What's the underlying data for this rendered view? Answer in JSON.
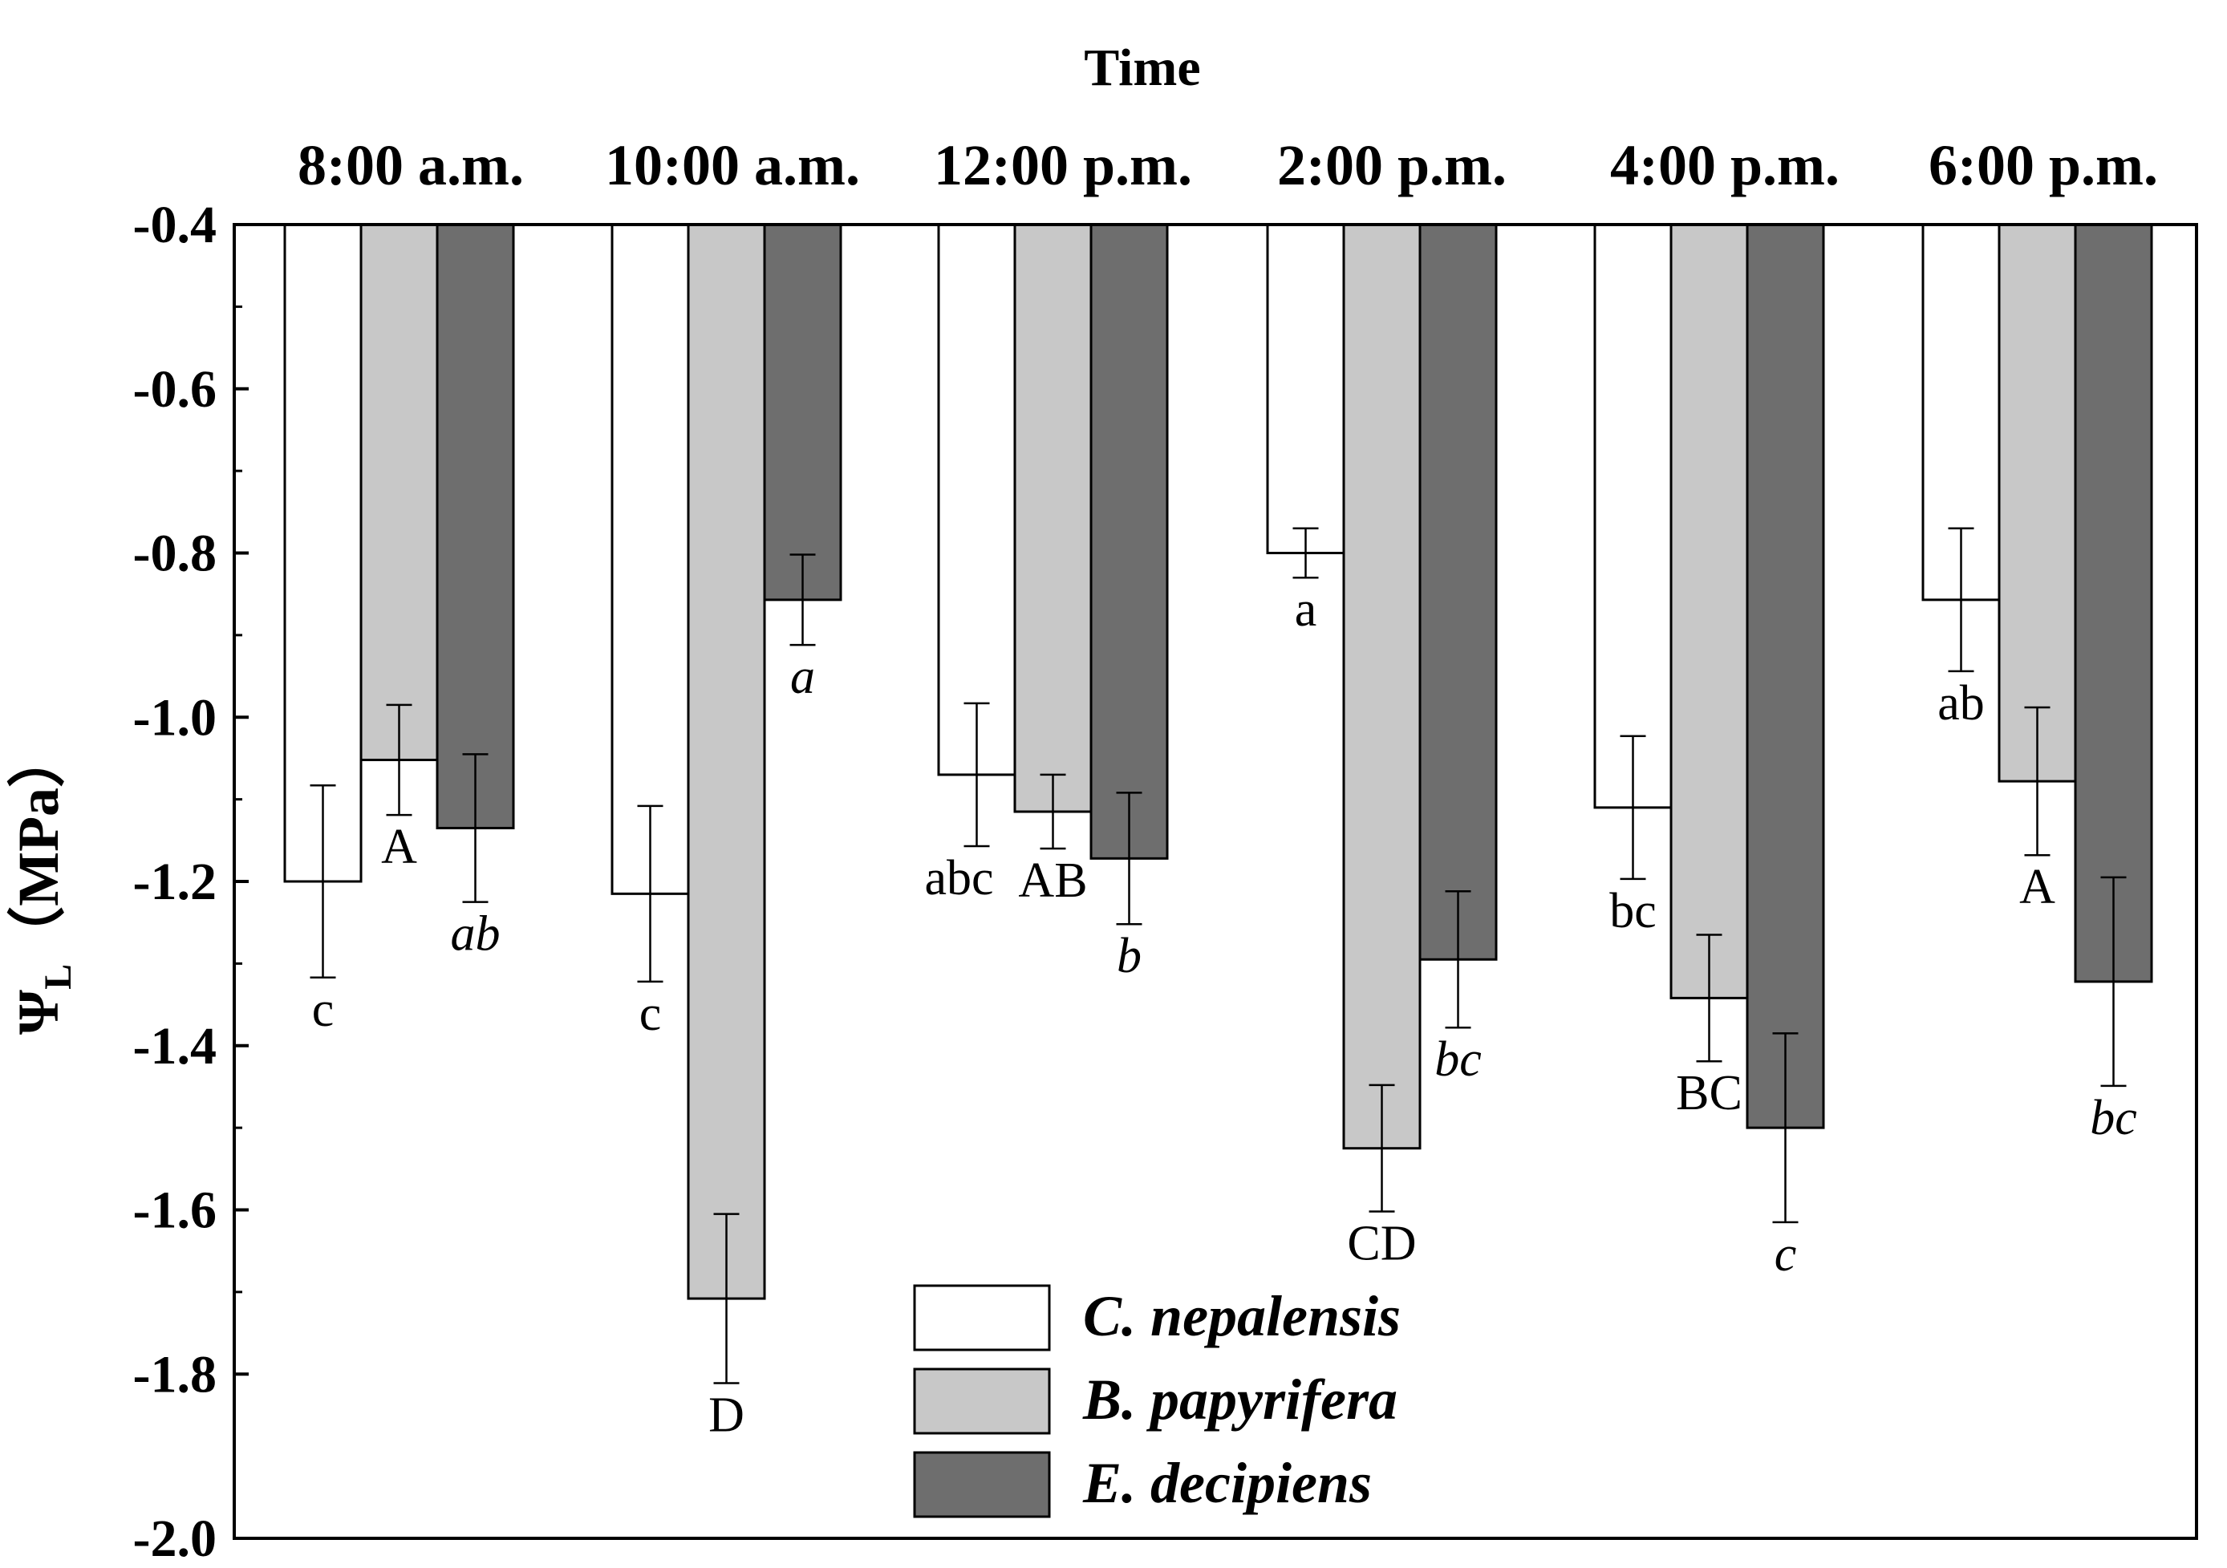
{
  "chart_data": {
    "type": "bar",
    "title": "Time",
    "xlabel": "Time",
    "ylabel_main": "Ψ",
    "ylabel_sub": "L",
    "ylabel_unit": "（MPa）",
    "ylim": [
      -2.0,
      -0.4
    ],
    "baseline": -0.4,
    "yticks": [
      -0.4,
      -0.6,
      -0.8,
      -1.0,
      -1.2,
      -1.4,
      -1.6,
      -1.8,
      -2.0
    ],
    "ytick_labels": [
      "-0.4",
      "-0.6",
      "-0.8",
      "-1.0",
      "-1.2",
      "-1.4",
      "-1.6",
      "-1.8",
      "-2.0"
    ],
    "categories": [
      "8:00 a.m.",
      "10:00 a.m.",
      "12:00 p.m.",
      "2:00 p.m.",
      "4:00 p.m.",
      "6:00 p.m."
    ],
    "series": [
      {
        "name": "C. nepalensis",
        "color": "#ffffff",
        "values": [
          -1.2,
          -1.215,
          -1.07,
          -0.8,
          -1.11,
          -0.857
        ],
        "errors": [
          0.117,
          0.107,
          0.087,
          0.03,
          0.087,
          0.087
        ],
        "letters": [
          "c",
          "c",
          "abc",
          "a",
          "bc",
          "ab"
        ],
        "letter_style": "normal"
      },
      {
        "name": "B. papyrifera",
        "color": "#c8c8c8",
        "values": [
          -1.052,
          -1.708,
          -1.115,
          -1.525,
          -1.342,
          -1.078
        ],
        "errors": [
          0.067,
          0.103,
          0.045,
          0.077,
          0.077,
          0.09
        ],
        "letters": [
          "A",
          "D",
          "AB",
          "CD",
          "BC",
          "A"
        ],
        "letter_style": "normal"
      },
      {
        "name": "E. decipiens",
        "color": "#6e6e6e",
        "values": [
          -1.135,
          -0.857,
          -1.172,
          -1.295,
          -1.5,
          -1.322
        ],
        "errors": [
          0.09,
          0.055,
          0.08,
          0.083,
          0.115,
          0.127
        ],
        "letters": [
          "ab",
          "a",
          "b",
          "bc",
          "c",
          "bc"
        ],
        "letter_style": "italic"
      }
    ],
    "legend_position": "bottom-center",
    "grid": false
  }
}
